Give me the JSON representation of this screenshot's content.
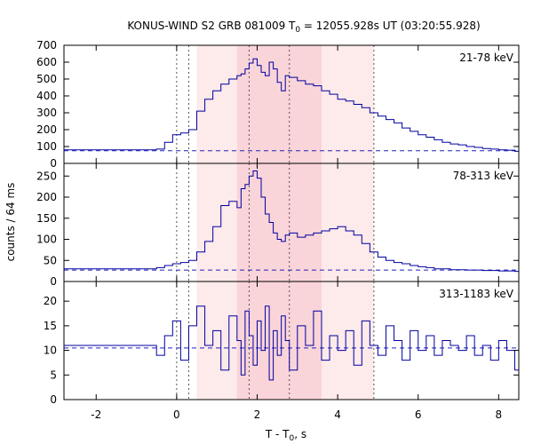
{
  "title_main": "KONUS-WIND S2 GRB 081009 T",
  "title_sub": "0",
  "title_rest": " = 12055.928s UT (03:20:55.928)",
  "xlabel_main": "T - T",
  "xlabel_sub": "0",
  "xlabel_rest": ", s",
  "ylabel": "counts / 64 ms",
  "colors": {
    "line": "#0000a0",
    "background_dashed": "#2020c0",
    "band_light": "#fdeaea",
    "band_dark": "#f9d4d9",
    "markers": "#555555"
  },
  "chart_data": {
    "type": "line",
    "title": "KONUS-WIND S2 GRB 081009 T0 = 12055.928s UT (03:20:55.928)",
    "xlabel": "T - T0, s",
    "ylabel": "counts / 64 ms",
    "xlim": [
      -2.8,
      8.5
    ],
    "xticks": [
      -2,
      0,
      2,
      4,
      6,
      8
    ],
    "xtick_labels": [
      "-2",
      "0",
      "2",
      "4",
      "6",
      "8"
    ],
    "bin_width_s": 0.064,
    "shaded_intervals": [
      {
        "tone": "light",
        "from": 0.5,
        "to": 4.9
      },
      {
        "tone": "dark",
        "from": 1.5,
        "to": 3.6
      }
    ],
    "vertical_markers": [
      0.0,
      0.3,
      1.8,
      2.8,
      4.9
    ],
    "panels": [
      {
        "name": "21-78 keV",
        "ylim": [
          0,
          700
        ],
        "yticks": [
          0,
          100,
          200,
          300,
          400,
          500,
          600,
          700
        ],
        "background": 75,
        "pre_trigger_level": 80,
        "x": [
          -0.5,
          -0.3,
          -0.1,
          0.1,
          0.3,
          0.5,
          0.7,
          0.9,
          1.1,
          1.3,
          1.5,
          1.6,
          1.7,
          1.8,
          1.9,
          2.0,
          2.1,
          2.2,
          2.3,
          2.4,
          2.5,
          2.6,
          2.7,
          2.8,
          3.0,
          3.2,
          3.4,
          3.6,
          3.8,
          4.0,
          4.2,
          4.4,
          4.6,
          4.8,
          5.0,
          5.2,
          5.4,
          5.6,
          5.8,
          6.0,
          6.2,
          6.4,
          6.6,
          6.8,
          7.0,
          7.2,
          7.4,
          7.6,
          7.8,
          8.0,
          8.2,
          8.4
        ],
        "values": [
          85,
          125,
          170,
          180,
          200,
          310,
          380,
          430,
          470,
          500,
          520,
          530,
          560,
          595,
          620,
          580,
          540,
          520,
          600,
          560,
          480,
          430,
          520,
          510,
          490,
          470,
          460,
          430,
          410,
          380,
          370,
          350,
          330,
          300,
          280,
          260,
          240,
          210,
          190,
          170,
          155,
          140,
          125,
          115,
          110,
          100,
          95,
          88,
          85,
          80,
          78,
          72
        ]
      },
      {
        "name": "78-313 keV",
        "ylim": [
          0,
          280
        ],
        "yticks": [
          0,
          50,
          100,
          150,
          200,
          250
        ],
        "background": 27,
        "pre_trigger_level": 30,
        "x": [
          -0.5,
          -0.3,
          -0.1,
          0.1,
          0.3,
          0.5,
          0.7,
          0.9,
          1.1,
          1.3,
          1.5,
          1.6,
          1.7,
          1.8,
          1.9,
          2.0,
          2.1,
          2.2,
          2.3,
          2.4,
          2.5,
          2.6,
          2.7,
          2.8,
          3.0,
          3.2,
          3.4,
          3.6,
          3.8,
          4.0,
          4.2,
          4.4,
          4.6,
          4.8,
          5.0,
          5.2,
          5.4,
          5.6,
          5.8,
          6.0,
          6.2,
          6.4,
          6.6,
          6.8,
          7.0,
          7.2,
          7.4,
          7.6,
          7.8,
          8.0,
          8.2,
          8.4
        ],
        "values": [
          33,
          38,
          42,
          45,
          50,
          70,
          95,
          130,
          180,
          190,
          175,
          220,
          230,
          250,
          262,
          245,
          200,
          160,
          140,
          115,
          100,
          95,
          110,
          115,
          105,
          110,
          115,
          120,
          125,
          130,
          120,
          110,
          90,
          70,
          58,
          50,
          45,
          42,
          38,
          35,
          33,
          30,
          30,
          28,
          28,
          27,
          27,
          26,
          26,
          25,
          25,
          24
        ]
      },
      {
        "name": "313-1183 keV",
        "ylim": [
          0,
          24
        ],
        "yticks": [
          0,
          5,
          10,
          15,
          20
        ],
        "background": 10.5,
        "pre_trigger_level": 11,
        "x": [
          -0.5,
          -0.3,
          -0.1,
          0.1,
          0.3,
          0.5,
          0.7,
          0.9,
          1.1,
          1.3,
          1.5,
          1.6,
          1.7,
          1.8,
          1.9,
          2.0,
          2.1,
          2.2,
          2.3,
          2.4,
          2.5,
          2.6,
          2.7,
          2.8,
          3.0,
          3.2,
          3.4,
          3.6,
          3.8,
          4.0,
          4.2,
          4.4,
          4.6,
          4.8,
          5.0,
          5.2,
          5.4,
          5.6,
          5.8,
          6.0,
          6.2,
          6.4,
          6.6,
          6.8,
          7.0,
          7.2,
          7.4,
          7.6,
          7.8,
          8.0,
          8.2,
          8.4
        ],
        "values": [
          9,
          13,
          16,
          8,
          15,
          19,
          11,
          14,
          6,
          17,
          12,
          5,
          18,
          13,
          7,
          16,
          10,
          19,
          4,
          14,
          9,
          17,
          12,
          6,
          15,
          11,
          18,
          8,
          13,
          10,
          14,
          7,
          16,
          11,
          9,
          15,
          12,
          8,
          14,
          10,
          13,
          9,
          12,
          11,
          10,
          13,
          9,
          11,
          8,
          12,
          10,
          6
        ]
      }
    ]
  }
}
